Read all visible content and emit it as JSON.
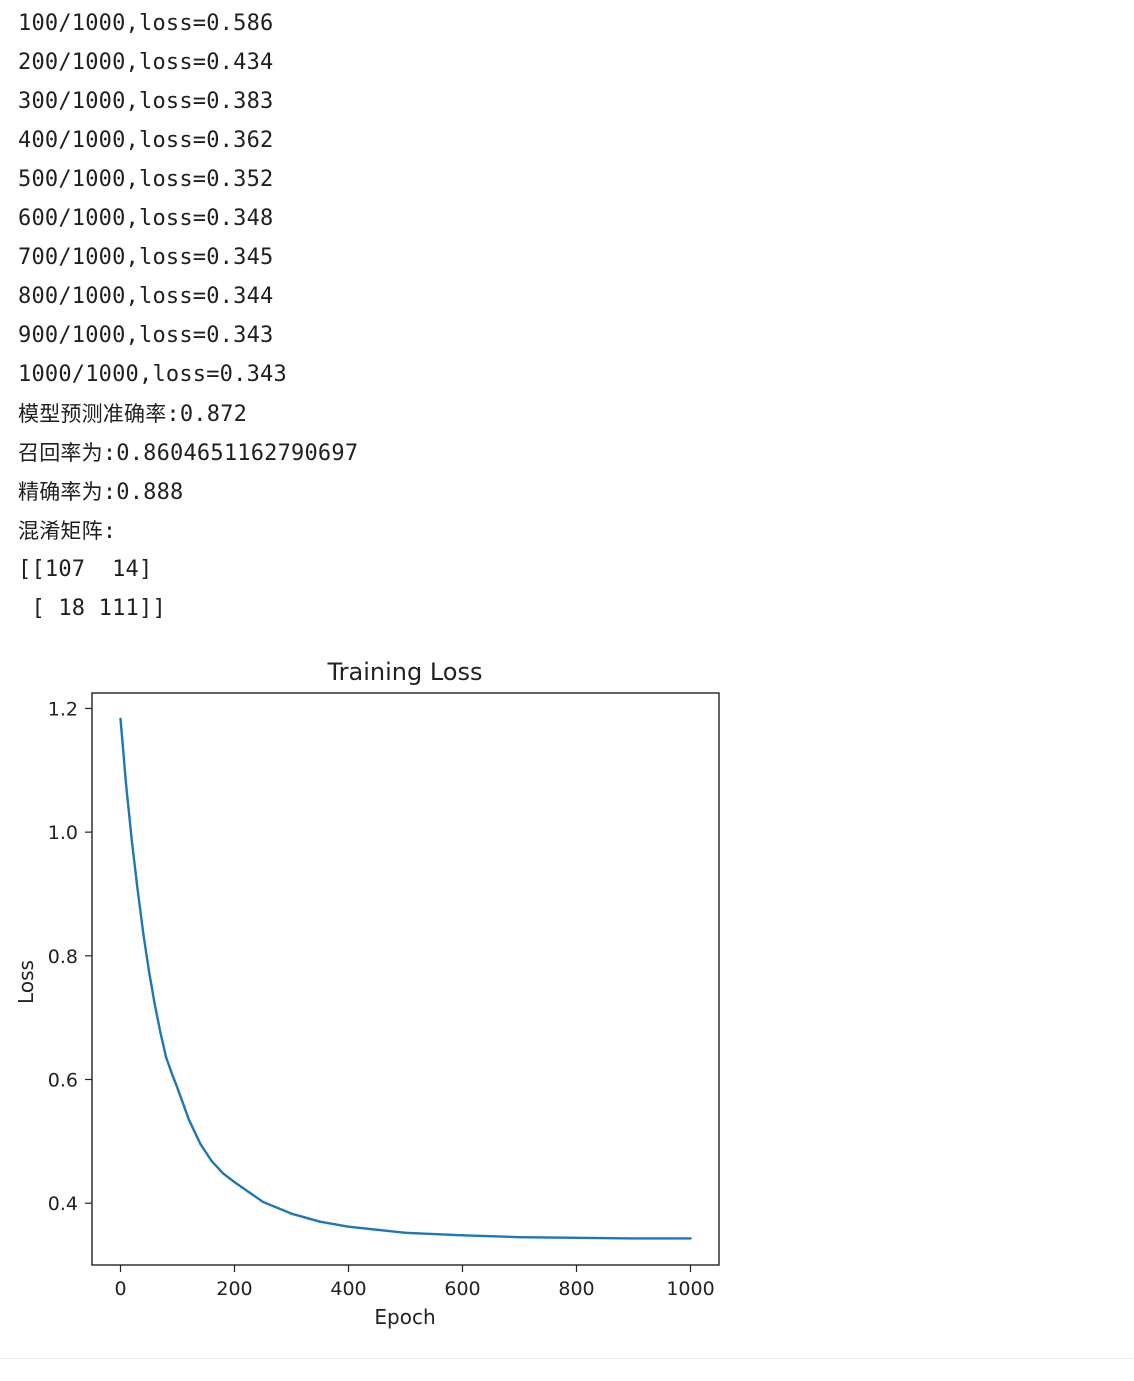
{
  "output": {
    "lines": [
      {
        "prefix": "",
        "text": "100/1000,loss=0.586"
      },
      {
        "prefix": "",
        "text": "200/1000,loss=0.434"
      },
      {
        "prefix": "",
        "text": "300/1000,loss=0.383"
      },
      {
        "prefix": "",
        "text": "400/1000,loss=0.362"
      },
      {
        "prefix": "",
        "text": "500/1000,loss=0.352"
      },
      {
        "prefix": "",
        "text": "600/1000,loss=0.348"
      },
      {
        "prefix": "",
        "text": "700/1000,loss=0.345"
      },
      {
        "prefix": "",
        "text": "800/1000,loss=0.344"
      },
      {
        "prefix": "",
        "text": "900/1000,loss=0.343"
      },
      {
        "prefix": "",
        "text": "1000/1000,loss=0.343"
      },
      {
        "prefix": "模型预测准确率",
        "text": ":0.872"
      },
      {
        "prefix": "召回率为",
        "text": ":0.8604651162790697"
      },
      {
        "prefix": "精确率为",
        "text": ":0.888"
      },
      {
        "prefix": "混淆矩阵",
        "text": ":"
      },
      {
        "prefix": "",
        "text": "[[107  14]"
      },
      {
        "prefix": "",
        "text": " [ 18 111]]"
      }
    ]
  },
  "chart_data": {
    "type": "line",
    "title": "Training Loss",
    "xlabel": "Epoch",
    "ylabel": "Loss",
    "xlim": [
      -50,
      1050
    ],
    "ylim": [
      0.3,
      1.225
    ],
    "xticks": [
      0,
      200,
      400,
      600,
      800,
      1000
    ],
    "yticks": [
      0.4,
      0.6,
      0.8,
      1.0,
      1.2
    ],
    "ytick_labels": [
      "0.4",
      "0.6",
      "0.8",
      "1.0",
      "1.2"
    ],
    "line_color": "#1f77b4",
    "grid": false,
    "series": [
      {
        "x": [
          0,
          10,
          20,
          30,
          40,
          50,
          60,
          70,
          80,
          90,
          100,
          120,
          140,
          160,
          180,
          200,
          250,
          300,
          350,
          400,
          450,
          500,
          600,
          700,
          800,
          900,
          1000
        ],
        "values": [
          1.183,
          1.075,
          0.985,
          0.907,
          0.836,
          0.775,
          0.722,
          0.676,
          0.636,
          0.61,
          0.586,
          0.535,
          0.496,
          0.468,
          0.448,
          0.434,
          0.402,
          0.383,
          0.37,
          0.362,
          0.357,
          0.352,
          0.348,
          0.345,
          0.344,
          0.343,
          0.343
        ]
      }
    ]
  }
}
